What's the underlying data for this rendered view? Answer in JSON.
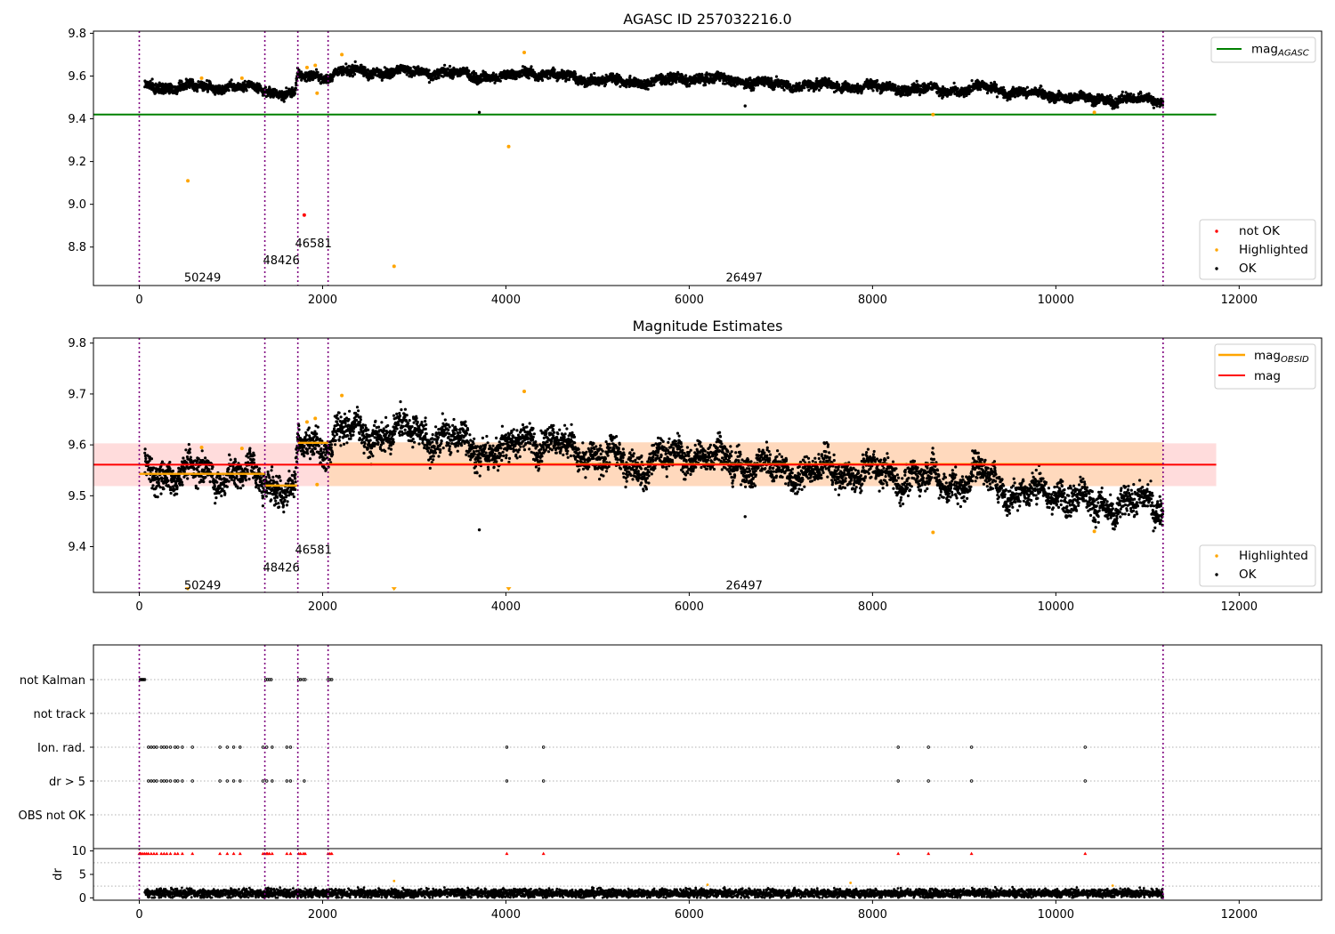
{
  "colors": {
    "ok": "#000000",
    "highlighted": "#ffa500",
    "not_ok": "#ff0000",
    "mag_agasc": "#008000",
    "mag_obsid": "#ffa500",
    "mag": "#ff0000",
    "band_red": "#ffdcdc",
    "band_orange": "#ffd9bd",
    "boundary": "#800080",
    "grid": "#b0b0b0"
  },
  "chart_data": [
    {
      "type": "scatter",
      "title": "AGASC ID 257032216.0",
      "xlabel": "",
      "ylabel": "",
      "xlim": [
        -500,
        12900
      ],
      "ylim": [
        8.62,
        9.81
      ],
      "xticks": [
        0,
        2000,
        4000,
        6000,
        8000,
        10000,
        12000
      ],
      "xtick_labels": [
        "0",
        "2000",
        "4000",
        "6000",
        "8000",
        "10000",
        "12000"
      ],
      "yticks": [
        8.8,
        9.0,
        9.2,
        9.4,
        9.6,
        9.8
      ],
      "ytick_labels": [
        "8.8",
        "9.0",
        "9.2",
        "9.4",
        "9.6",
        "9.8"
      ],
      "obs_boundaries": [
        0,
        1370,
        1730,
        2060,
        11170
      ],
      "obsid_labels": [
        {
          "text": "50249",
          "x": 690,
          "y": 8.66
        },
        {
          "text": "48426",
          "x": 1550,
          "y": 8.74
        },
        {
          "text": "46581",
          "x": 1900,
          "y": 8.82
        },
        {
          "text": "26497",
          "x": 6600,
          "y": 8.66
        }
      ],
      "mag_agasc": 9.42,
      "mag_agasc_xrange": [
        -500,
        11750
      ],
      "series": [
        {
          "name": "OK",
          "trend_x": [
            60,
            500,
            1000,
            1370,
            1400,
            1700,
            1730,
            2060,
            2200,
            2600,
            3000,
            3500,
            4000,
            4200,
            5000,
            5500,
            6000,
            6500,
            7000,
            8000,
            9000,
            9200,
            9600,
            10000,
            10400,
            11170
          ],
          "trend_y": [
            9.55,
            9.55,
            9.55,
            9.54,
            9.53,
            9.51,
            9.6,
            9.6,
            9.62,
            9.62,
            9.62,
            9.61,
            9.59,
            9.62,
            9.58,
            9.57,
            9.59,
            9.58,
            9.56,
            9.55,
            9.53,
            9.55,
            9.52,
            9.51,
            9.49,
            9.49
          ],
          "outliers": [
            {
              "x": 3710,
              "y": 9.43
            },
            {
              "x": 6610,
              "y": 9.46
            }
          ]
        },
        {
          "name": "Highlighted",
          "points": [
            {
              "x": 530,
              "y": 9.11
            },
            {
              "x": 680,
              "y": 9.59
            },
            {
              "x": 1120,
              "y": 9.59
            },
            {
              "x": 1830,
              "y": 9.64
            },
            {
              "x": 1920,
              "y": 9.65
            },
            {
              "x": 1940,
              "y": 9.52
            },
            {
              "x": 2210,
              "y": 9.7
            },
            {
              "x": 2780,
              "y": 8.71
            },
            {
              "x": 4030,
              "y": 9.27
            },
            {
              "x": 4200,
              "y": 9.71
            },
            {
              "x": 8660,
              "y": 9.42
            },
            {
              "x": 10420,
              "y": 9.43
            }
          ]
        },
        {
          "name": "not OK",
          "points": [
            {
              "x": 1800,
              "y": 8.95
            }
          ]
        }
      ],
      "legends": [
        {
          "placement": "upper-right",
          "entries": [
            "mag_AGASC"
          ]
        },
        {
          "placement": "lower-right",
          "entries": [
            "not OK",
            "Highlighted",
            "OK"
          ]
        }
      ]
    },
    {
      "type": "scatter",
      "title": "Magnitude Estimates",
      "xlabel": "",
      "ylabel": "",
      "xlim": [
        -500,
        12900
      ],
      "ylim": [
        9.31,
        9.81
      ],
      "xticks": [
        0,
        2000,
        4000,
        6000,
        8000,
        10000,
        12000
      ],
      "xtick_labels": [
        "0",
        "2000",
        "4000",
        "6000",
        "8000",
        "10000",
        "12000"
      ],
      "yticks": [
        9.4,
        9.5,
        9.6,
        9.7,
        9.8
      ],
      "ytick_labels": [
        "9.4",
        "9.5",
        "9.6",
        "9.7",
        "9.8"
      ],
      "obs_boundaries": [
        0,
        1370,
        1730,
        2060,
        11170
      ],
      "obsid_labels": [
        {
          "text": "50249",
          "x": 690,
          "y": 9.325
        },
        {
          "text": "48426",
          "x": 1550,
          "y": 9.36
        },
        {
          "text": "46581",
          "x": 1900,
          "y": 9.395
        },
        {
          "text": "26497",
          "x": 6600,
          "y": 9.325
        }
      ],
      "mag": 9.561,
      "mag_band": [
        9.519,
        9.603
      ],
      "mag_xrange": [
        -500,
        11750
      ],
      "mag_obsid_segments": [
        {
          "x0": 0,
          "x1": 1370,
          "y": 9.543
        },
        {
          "x0": 1370,
          "x1": 1730,
          "y": 9.52
        },
        {
          "x0": 1730,
          "x1": 2060,
          "y": 9.604
        },
        {
          "x0": 2060,
          "x1": 11170,
          "y": 9.562
        }
      ],
      "mag_obsid_band": {
        "x0": 2060,
        "x1": 11170,
        "y0": 9.519,
        "y1": 9.605
      },
      "series": [
        {
          "name": "OK",
          "trend_x": [
            60,
            500,
            1000,
            1370,
            1400,
            1700,
            1730,
            2060,
            2200,
            2600,
            3000,
            3500,
            4000,
            4200,
            5000,
            5500,
            6000,
            6500,
            7000,
            8000,
            9000,
            9200,
            9600,
            10000,
            10400,
            11170
          ],
          "trend_y": [
            9.545,
            9.545,
            9.545,
            9.535,
            9.525,
            9.505,
            9.6,
            9.6,
            9.625,
            9.625,
            9.625,
            9.605,
            9.58,
            9.62,
            9.575,
            9.56,
            9.585,
            9.565,
            9.55,
            9.545,
            9.525,
            9.545,
            9.5,
            9.51,
            9.48,
            9.485
          ],
          "outliers": [
            {
              "x": 3710,
              "y": 9.433
            },
            {
              "x": 6610,
              "y": 9.459
            }
          ]
        },
        {
          "name": "Highlighted",
          "points": [
            {
              "x": 530,
              "y": 9.318
            },
            {
              "x": 680,
              "y": 9.595
            },
            {
              "x": 1120,
              "y": 9.593
            },
            {
              "x": 1830,
              "y": 9.645
            },
            {
              "x": 1920,
              "y": 9.652
            },
            {
              "x": 1940,
              "y": 9.522
            },
            {
              "x": 2210,
              "y": 9.697
            },
            {
              "x": 2780,
              "y": 9.318
            },
            {
              "x": 4030,
              "y": 9.318
            },
            {
              "x": 4200,
              "y": 9.705
            },
            {
              "x": 8660,
              "y": 9.428
            },
            {
              "x": 10420,
              "y": 9.43
            }
          ]
        }
      ],
      "legends": [
        {
          "placement": "upper-right",
          "entries": [
            "mag_OBSID",
            "mag"
          ]
        },
        {
          "placement": "lower-right",
          "entries": [
            "Highlighted",
            "OK"
          ]
        }
      ]
    },
    {
      "type": "scatter",
      "title": "",
      "xlabel": "",
      "ylabel": "",
      "xlim": [
        -500,
        12900
      ],
      "flag_rows": [
        "not Kalman",
        "not track",
        "Ion. rad.",
        "dr > 5",
        "OBS not OK"
      ],
      "obs_boundaries": [
        0,
        1370,
        1730,
        2060,
        11170
      ],
      "flag_points": {
        "not Kalman": [
          10,
          20,
          30,
          40,
          50,
          60,
          1380,
          1400,
          1420,
          1440,
          1740,
          1760,
          1790,
          1810,
          2060,
          2080,
          2100
        ],
        "not track": [],
        "Ion. rad.": [
          100,
          130,
          160,
          190,
          240,
          270,
          300,
          340,
          390,
          420,
          470,
          580,
          880,
          960,
          1030,
          1100,
          1350,
          1390,
          1450,
          1610,
          1650,
          4010,
          4410,
          8280,
          8610,
          9080,
          10320
        ],
        "dr > 5": [
          100,
          130,
          160,
          190,
          240,
          270,
          300,
          340,
          390,
          420,
          470,
          580,
          880,
          960,
          1030,
          1100,
          1350,
          1390,
          1450,
          1610,
          1650,
          1800,
          4010,
          4410,
          8280,
          8610,
          9080,
          10320
        ],
        "OBS not OK": []
      }
    },
    {
      "type": "scatter",
      "title": "",
      "xlabel": "",
      "ylabel": "dr",
      "xlim": [
        -500,
        12900
      ],
      "ylim": [
        -0.5,
        10.5
      ],
      "xticks": [
        0,
        2000,
        4000,
        6000,
        8000,
        10000,
        12000
      ],
      "xtick_labels": [
        "0",
        "2000",
        "4000",
        "6000",
        "8000",
        "10000",
        "12000"
      ],
      "yticks": [
        0,
        5,
        10
      ],
      "ytick_labels": [
        "0",
        "5",
        "10"
      ],
      "obs_boundaries": [
        0,
        1370,
        1730,
        2060,
        11170
      ],
      "dr_typical": 1.0,
      "clipped_points_x": [
        0,
        10,
        20,
        40,
        60,
        80,
        100,
        130,
        160,
        190,
        240,
        270,
        300,
        340,
        390,
        420,
        470,
        580,
        880,
        960,
        1030,
        1100,
        1350,
        1370,
        1390,
        1400,
        1420,
        1450,
        1610,
        1650,
        1740,
        1760,
        1790,
        1810,
        2060,
        2080,
        2100,
        4010,
        4410,
        8280,
        8610,
        9080,
        10320
      ],
      "clipped_value": 10,
      "highlighted_dr": [
        {
          "x": 2780,
          "y": 3.6
        },
        {
          "x": 6200,
          "y": 2.8
        },
        {
          "x": 7760,
          "y": 3.2
        },
        {
          "x": 10620,
          "y": 2.6
        }
      ]
    }
  ]
}
